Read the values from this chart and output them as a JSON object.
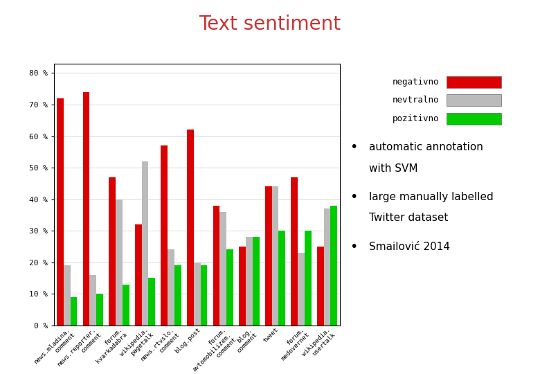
{
  "categories": [
    "news.mladina.\ncomment",
    "news.reporter.\ncomment",
    "forum.\nkvarkadabra",
    "wikipedia.\npagetalk",
    "news.rtvslo.\ncomment",
    "blog.post",
    "forum.\navtomobilizem.\ncomment",
    "blog.\ncomment",
    "tweet",
    "forum.\nmedovernet",
    "wikipedia.\nusertalk"
  ],
  "negativno": [
    72,
    74,
    47,
    32,
    57,
    62,
    38,
    25,
    44,
    47,
    25
  ],
  "nevtralno": [
    19,
    16,
    40,
    52,
    24,
    20,
    36,
    28,
    44,
    23,
    37
  ],
  "pozitivno": [
    9,
    10,
    13,
    15,
    19,
    19,
    24,
    28,
    30,
    30,
    38
  ],
  "neg_color": "#dd0000",
  "neu_color": "#bbbbbb",
  "pos_color": "#00cc00",
  "title": "Text sentiment",
  "title_color": "#cc3333",
  "bg_color": "#ffffff",
  "legend_labels": [
    "negativno",
    "nevtralno",
    "pozitivno"
  ],
  "ylim": [
    0,
    83
  ],
  "yticks": [
    0,
    10,
    20,
    30,
    40,
    50,
    60,
    70,
    80
  ],
  "ytick_labels": [
    "0 %",
    "10 %",
    "20 %",
    "30 %",
    "40 %",
    "50 %",
    "60 %",
    "70 %",
    "80 %"
  ],
  "bullet_points": [
    "automatic annotation\nwith SVM",
    "large manually labelled\nTwitter dataset",
    "Smailović 2014"
  ],
  "header_line_color": "#880000",
  "header_bg": "#5a1a1a"
}
